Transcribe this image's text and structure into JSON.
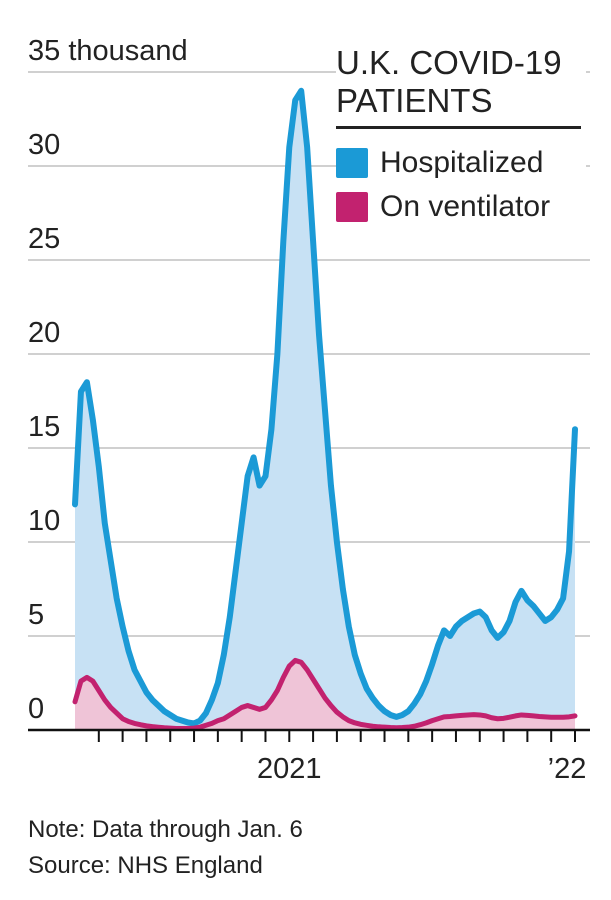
{
  "chart_data": {
    "type": "area",
    "title": "U.K. COVID-19 PATIENTS",
    "note": "Note: Data through Jan. 6",
    "source": "Source: NHS England",
    "categories": [
      null,
      null,
      null,
      null,
      null,
      null,
      null,
      null,
      null,
      null,
      null,
      null,
      null,
      null,
      null,
      null,
      null,
      null,
      null,
      null,
      null,
      null,
      null,
      null,
      null,
      null,
      null,
      null,
      null,
      null,
      null,
      null,
      null,
      null,
      null,
      null,
      "2021",
      null,
      null,
      null,
      null,
      null,
      null,
      null,
      null,
      null,
      null,
      null,
      null,
      null,
      null,
      null,
      null,
      null,
      null,
      null,
      null,
      null,
      null,
      null,
      null,
      null,
      null,
      null,
      null,
      null,
      null,
      null,
      null,
      null,
      null,
      null,
      null,
      null,
      null,
      null,
      null,
      null,
      null,
      null,
      null,
      null,
      null,
      null,
      "’22"
    ],
    "series": [
      {
        "name": "Hospitalized",
        "color": "#1b9ad6",
        "fill": "#c7e1f4",
        "values": [
          12,
          18,
          18.5,
          16.5,
          14,
          11,
          9,
          7,
          5.5,
          4.2,
          3.2,
          2.6,
          2.0,
          1.6,
          1.3,
          1.0,
          0.8,
          0.6,
          0.5,
          0.4,
          0.35,
          0.5,
          0.9,
          1.6,
          2.5,
          4,
          6,
          8.5,
          11,
          13.5,
          14.5,
          13,
          13.5,
          16,
          20,
          26,
          31,
          33.5,
          34,
          31,
          26,
          21,
          17,
          13,
          10,
          7.5,
          5.5,
          4,
          3,
          2.2,
          1.7,
          1.3,
          1.0,
          0.8,
          0.7,
          0.8,
          1.0,
          1.4,
          1.9,
          2.6,
          3.5,
          4.5,
          5.3,
          5.0,
          5.5,
          5.8,
          6.0,
          6.2,
          6.3,
          6.0,
          5.3,
          4.9,
          5.2,
          5.8,
          6.8,
          7.4,
          6.9,
          6.6,
          6.2,
          5.8,
          6.0,
          6.4,
          7.0,
          9.5,
          16
        ]
      },
      {
        "name": "On ventilator",
        "color": "#c2226f",
        "fill": "#efc4d7",
        "values": [
          1.5,
          2.6,
          2.8,
          2.6,
          2.1,
          1.6,
          1.2,
          0.9,
          0.6,
          0.45,
          0.35,
          0.28,
          0.22,
          0.18,
          0.15,
          0.12,
          0.1,
          0.08,
          0.08,
          0.08,
          0.1,
          0.15,
          0.25,
          0.35,
          0.5,
          0.6,
          0.8,
          1.0,
          1.2,
          1.3,
          1.2,
          1.1,
          1.2,
          1.6,
          2.1,
          2.8,
          3.4,
          3.7,
          3.6,
          3.2,
          2.7,
          2.2,
          1.7,
          1.3,
          0.95,
          0.7,
          0.5,
          0.38,
          0.3,
          0.25,
          0.2,
          0.17,
          0.15,
          0.13,
          0.12,
          0.13,
          0.15,
          0.2,
          0.28,
          0.38,
          0.5,
          0.6,
          0.7,
          0.72,
          0.75,
          0.78,
          0.8,
          0.82,
          0.8,
          0.75,
          0.65,
          0.6,
          0.62,
          0.68,
          0.75,
          0.8,
          0.78,
          0.75,
          0.72,
          0.7,
          0.68,
          0.68,
          0.68,
          0.7,
          0.75
        ]
      }
    ],
    "ylim": [
      0,
      35
    ],
    "yticks": [
      0,
      5,
      10,
      15,
      20,
      25,
      30,
      {
        "value": 35,
        "label": "35 thousand"
      }
    ],
    "grid": true
  }
}
